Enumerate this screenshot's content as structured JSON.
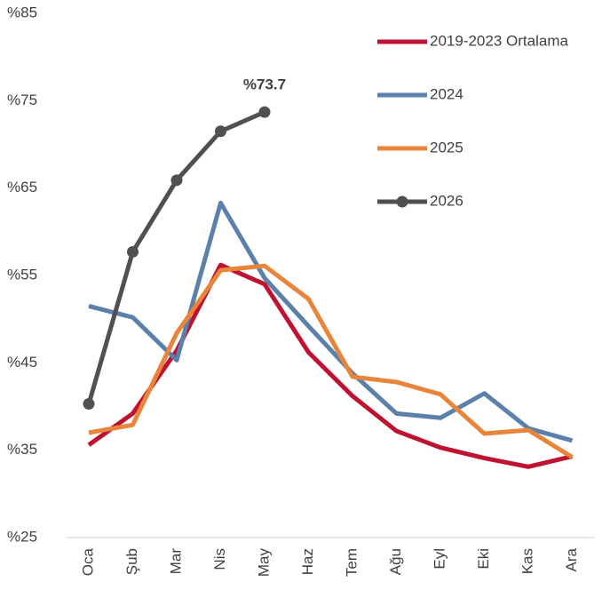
{
  "chart_data": {
    "type": "line",
    "categories": [
      "Oca",
      "Şub",
      "Mar",
      "Nis",
      "May",
      "Haz",
      "Tem",
      "Ağu",
      "Eyl",
      "Eki",
      "Kas",
      "Ara"
    ],
    "series": [
      {
        "name": "2019-2023 Ortalama",
        "color": "#be1230",
        "values": [
          35.6,
          39.2,
          46.4,
          56.2,
          54.0,
          46.2,
          41.2,
          37.2,
          35.3,
          34.1,
          33.1,
          34.3
        ]
      },
      {
        "name": "2024",
        "color": "#5b80a9",
        "values": [
          51.5,
          50.2,
          45.3,
          63.3,
          54.7,
          49.2,
          43.8,
          39.2,
          38.7,
          41.5,
          37.5,
          36.1
        ]
      },
      {
        "name": "2025",
        "color": "#e8853a",
        "values": [
          37.0,
          37.9,
          48.4,
          55.6,
          56.1,
          52.3,
          43.4,
          42.8,
          41.4,
          36.9,
          37.3,
          34.2
        ]
      },
      {
        "name": "2026",
        "color": "#505050",
        "markers": true,
        "values": [
          40.3,
          57.7,
          65.9,
          71.5,
          73.7,
          null,
          null,
          null,
          null,
          null,
          null,
          null
        ],
        "value_labels": [
          null,
          null,
          null,
          null,
          "%73.7",
          null,
          null,
          null,
          null,
          null,
          null,
          null
        ]
      }
    ],
    "ylim": [
      25,
      85
    ],
    "yticks": [
      {
        "value": 25,
        "label": "%25"
      },
      {
        "value": 35,
        "label": "%35"
      },
      {
        "value": 45,
        "label": "%45"
      },
      {
        "value": 55,
        "label": "%55"
      },
      {
        "value": 65,
        "label": "%65"
      },
      {
        "value": 75,
        "label": "%75"
      },
      {
        "value": 85,
        "label": "%85"
      }
    ],
    "grid": false,
    "legend": "top-right"
  }
}
